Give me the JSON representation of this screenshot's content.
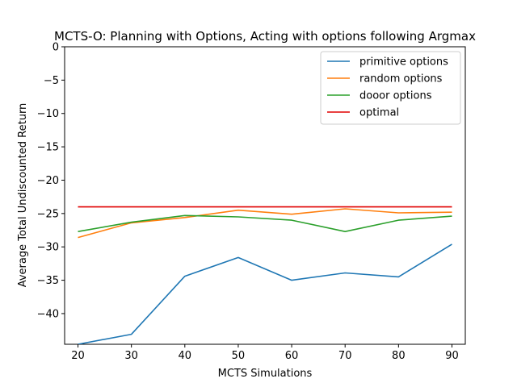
{
  "chart_data": {
    "type": "line",
    "title": "MCTS-O: Planning with Options, Acting with options following Argmax",
    "xlabel": "MCTS Simulations",
    "ylabel": "Average Total Undiscounted Return",
    "x": [
      20,
      30,
      40,
      50,
      60,
      70,
      80,
      90
    ],
    "xlim": [
      17.5,
      92.5
    ],
    "ylim": [
      -44.6,
      0
    ],
    "xticks": [
      20,
      30,
      40,
      50,
      60,
      70,
      80,
      90
    ],
    "yticks": [
      0,
      -5,
      -10,
      -15,
      -20,
      -25,
      -30,
      -35,
      -40
    ],
    "ytick_labels": [
      "0",
      "−5",
      "−10",
      "−15",
      "−20",
      "−25",
      "−30",
      "−35",
      "−40"
    ],
    "grid": false,
    "legend_position": "top-right",
    "series": [
      {
        "name": "primitive options",
        "color": "#1f77b4",
        "values": [
          -44.6,
          -43.1,
          -34.4,
          -31.6,
          -35.0,
          -33.9,
          -34.5,
          -29.6
        ]
      },
      {
        "name": "random options",
        "color": "#ff7f0e",
        "values": [
          -28.6,
          -26.4,
          -25.6,
          -24.5,
          -25.1,
          -24.3,
          -24.9,
          -24.8
        ]
      },
      {
        "name": "dooor options",
        "color": "#2ca02c",
        "values": [
          -27.7,
          -26.3,
          -25.3,
          -25.5,
          -26.0,
          -27.7,
          -26.0,
          -25.4
        ]
      },
      {
        "name": "optimal",
        "color": "#e00000",
        "values": [
          -24.0,
          -24.0,
          -24.0,
          -24.0,
          -24.0,
          -24.0,
          -24.0,
          -24.0
        ]
      }
    ]
  }
}
